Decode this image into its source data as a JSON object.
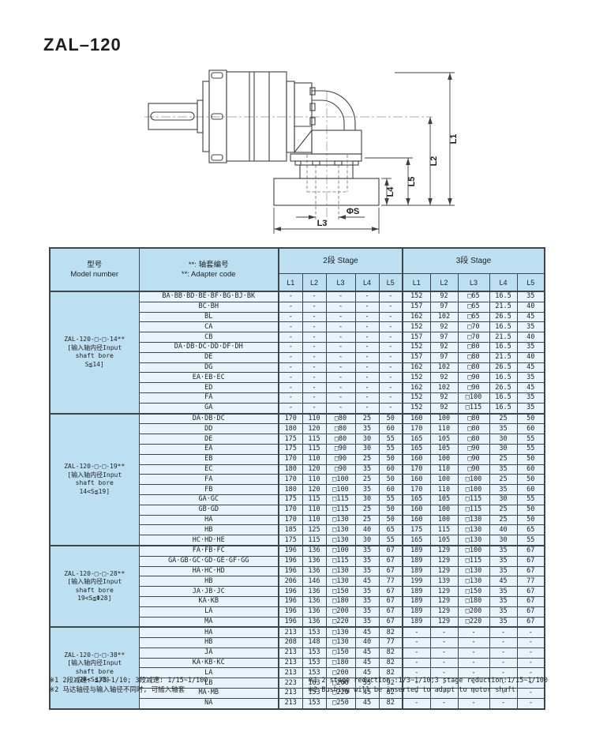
{
  "page": {
    "title": "ZAL–120"
  },
  "colors": {
    "header_bg": "#bce0f2",
    "cell_bg": "#e9f4fa",
    "border": "#3d464d",
    "line": "#404040"
  },
  "drawing": {
    "description": "Right-angle planetary gearbox, side view with dimensions",
    "dims": {
      "l1": "L1",
      "l2": "L2",
      "l3": "L3",
      "l4": "L4",
      "l5": "L5",
      "phi_s": "ΦS"
    }
  },
  "table": {
    "headers": {
      "model_zh": "型号",
      "model_en": "Model number",
      "adapter_zh": "**: 轴套编号",
      "adapter_en": "**: Adapter code",
      "stage2": "2段 Stage",
      "stage3": "3段 Stage"
    },
    "sub_headers": [
      "L1",
      "L2",
      "L3",
      "L4",
      "L5"
    ],
    "groups": [
      {
        "model_lines": [
          "ZAL-120-□-□-14**",
          "[输入轴内径Input",
          "shaft bore",
          "S≦14]"
        ],
        "rows": [
          {
            "code": "BA·BB·BD·BE·BF·BG·BJ·BK",
            "s2": [
              "-",
              "-",
              "-",
              "-",
              "-"
            ],
            "s3": [
              "152",
              "92",
              "□65",
              "16.5",
              "35"
            ]
          },
          {
            "code": "BC·BH",
            "s2": [
              "-",
              "-",
              "-",
              "-",
              "-"
            ],
            "s3": [
              "157",
              "97",
              "□65",
              "21.5",
              "40"
            ]
          },
          {
            "code": "BL",
            "s2": [
              "-",
              "-",
              "-",
              "-",
              "-"
            ],
            "s3": [
              "162",
              "102",
              "□65",
              "26.5",
              "45"
            ]
          },
          {
            "code": "CA",
            "s2": [
              "-",
              "-",
              "-",
              "-",
              "-"
            ],
            "s3": [
              "152",
              "92",
              "□70",
              "16.5",
              "35"
            ]
          },
          {
            "code": "CB",
            "s2": [
              "-",
              "-",
              "-",
              "-",
              "-"
            ],
            "s3": [
              "157",
              "97",
              "□70",
              "21.5",
              "40"
            ]
          },
          {
            "code": "DA·DB·DC·DD·DF·DH",
            "s2": [
              "-",
              "-",
              "-",
              "-",
              "-"
            ],
            "s3": [
              "152",
              "92",
              "□80",
              "16.5",
              "35"
            ]
          },
          {
            "code": "DE",
            "s2": [
              "-",
              "-",
              "-",
              "-",
              "-"
            ],
            "s3": [
              "157",
              "97",
              "□80",
              "21.5",
              "40"
            ]
          },
          {
            "code": "DG",
            "s2": [
              "-",
              "-",
              "-",
              "-",
              "-"
            ],
            "s3": [
              "162",
              "102",
              "□80",
              "26.5",
              "45"
            ]
          },
          {
            "code": "EA·EB·EC",
            "s2": [
              "-",
              "-",
              "-",
              "-",
              "-"
            ],
            "s3": [
              "152",
              "92",
              "□90",
              "16.5",
              "35"
            ]
          },
          {
            "code": "ED",
            "s2": [
              "-",
              "-",
              "-",
              "-",
              "-"
            ],
            "s3": [
              "162",
              "102",
              "□90",
              "26.5",
              "45"
            ]
          },
          {
            "code": "FA",
            "s2": [
              "-",
              "-",
              "-",
              "-",
              "-"
            ],
            "s3": [
              "152",
              "92",
              "□100",
              "16.5",
              "35"
            ]
          },
          {
            "code": "GA",
            "s2": [
              "-",
              "-",
              "-",
              "-",
              "-"
            ],
            "s3": [
              "152",
              "92",
              "□115",
              "16.5",
              "35"
            ]
          }
        ]
      },
      {
        "model_lines": [
          "ZAL-120-□-□-19**",
          "[输入轴内径Input",
          "shaft bore",
          "14<S≦19]"
        ],
        "rows": [
          {
            "code": "DA·DB·DC",
            "s2": [
              "170",
              "110",
              "□80",
              "25",
              "50"
            ],
            "s3": [
              "160",
              "100",
              "□80",
              "25",
              "50"
            ]
          },
          {
            "code": "DD",
            "s2": [
              "180",
              "120",
              "□80",
              "35",
              "60"
            ],
            "s3": [
              "170",
              "110",
              "□80",
              "35",
              "60"
            ]
          },
          {
            "code": "DE",
            "s2": [
              "175",
              "115",
              "□80",
              "30",
              "55"
            ],
            "s3": [
              "165",
              "105",
              "□80",
              "30",
              "55"
            ]
          },
          {
            "code": "EA",
            "s2": [
              "175",
              "115",
              "□90",
              "30",
              "55"
            ],
            "s3": [
              "165",
              "105",
              "□90",
              "30",
              "55"
            ]
          },
          {
            "code": "EB",
            "s2": [
              "170",
              "110",
              "□90",
              "25",
              "50"
            ],
            "s3": [
              "160",
              "100",
              "□90",
              "25",
              "50"
            ]
          },
          {
            "code": "EC",
            "s2": [
              "180",
              "120",
              "□90",
              "35",
              "60"
            ],
            "s3": [
              "170",
              "110",
              "□90",
              "35",
              "60"
            ]
          },
          {
            "code": "FA",
            "s2": [
              "170",
              "110",
              "□100",
              "25",
              "50"
            ],
            "s3": [
              "160",
              "100",
              "□100",
              "25",
              "50"
            ]
          },
          {
            "code": "FB",
            "s2": [
              "180",
              "120",
              "□100",
              "35",
              "60"
            ],
            "s3": [
              "170",
              "110",
              "□100",
              "35",
              "60"
            ]
          },
          {
            "code": "GA·GC",
            "s2": [
              "175",
              "115",
              "□115",
              "30",
              "55"
            ],
            "s3": [
              "165",
              "105",
              "□115",
              "30",
              "55"
            ]
          },
          {
            "code": "GB·GD",
            "s2": [
              "170",
              "110",
              "□115",
              "25",
              "50"
            ],
            "s3": [
              "160",
              "100",
              "□115",
              "25",
              "50"
            ]
          },
          {
            "code": "HA",
            "s2": [
              "170",
              "110",
              "□130",
              "25",
              "50"
            ],
            "s3": [
              "160",
              "100",
              "□130",
              "25",
              "50"
            ]
          },
          {
            "code": "HB",
            "s2": [
              "185",
              "125",
              "□130",
              "40",
              "65"
            ],
            "s3": [
              "175",
              "115",
              "□130",
              "40",
              "65"
            ]
          },
          {
            "code": "HC·HD·HE",
            "s2": [
              "175",
              "115",
              "□130",
              "30",
              "55"
            ],
            "s3": [
              "165",
              "105",
              "□130",
              "30",
              "55"
            ]
          }
        ]
      },
      {
        "model_lines": [
          "ZAL-120-□-□-28**",
          "[输入轴内径Input",
          "shaft bore",
          "19<S≦Φ28]"
        ],
        "rows": [
          {
            "code": "FA·FB·FC",
            "s2": [
              "196",
              "136",
              "□100",
              "35",
              "67"
            ],
            "s3": [
              "189",
              "129",
              "□100",
              "35",
              "67"
            ]
          },
          {
            "code": "GA·GB·GC·GD·GE·GF·GG",
            "s2": [
              "196",
              "136",
              "□115",
              "35",
              "67"
            ],
            "s3": [
              "189",
              "129",
              "□115",
              "35",
              "67"
            ]
          },
          {
            "code": "HA·HC·HD",
            "s2": [
              "196",
              "136",
              "□130",
              "35",
              "67"
            ],
            "s3": [
              "189",
              "129",
              "□130",
              "35",
              "67"
            ]
          },
          {
            "code": "HB",
            "s2": [
              "206",
              "146",
              "□130",
              "45",
              "77"
            ],
            "s3": [
              "199",
              "139",
              "□130",
              "45",
              "77"
            ]
          },
          {
            "code": "JA·JB·JC",
            "s2": [
              "196",
              "136",
              "□150",
              "35",
              "67"
            ],
            "s3": [
              "189",
              "129",
              "□150",
              "35",
              "67"
            ]
          },
          {
            "code": "KA·KB",
            "s2": [
              "196",
              "136",
              "□180",
              "35",
              "67"
            ],
            "s3": [
              "189",
              "129",
              "□180",
              "35",
              "67"
            ]
          },
          {
            "code": "LA",
            "s2": [
              "196",
              "136",
              "□200",
              "35",
              "67"
            ],
            "s3": [
              "189",
              "129",
              "□200",
              "35",
              "67"
            ]
          },
          {
            "code": "MA",
            "s2": [
              "196",
              "136",
              "□220",
              "35",
              "67"
            ],
            "s3": [
              "189",
              "129",
              "□220",
              "35",
              "67"
            ]
          }
        ]
      },
      {
        "model_lines": [
          "ZAL-120-□-□-38**",
          "[输入轴内径Input",
          "shaft bore",
          "28<S≦38]"
        ],
        "rows": [
          {
            "code": "HA",
            "s2": [
              "213",
              "153",
              "□130",
              "45",
              "82"
            ],
            "s3": [
              "-",
              "-",
              "-",
              "-",
              "-"
            ]
          },
          {
            "code": "HB",
            "s2": [
              "208",
              "148",
              "□130",
              "40",
              "77"
            ],
            "s3": [
              "-",
              "-",
              "-",
              "-",
              "-"
            ]
          },
          {
            "code": "JA",
            "s2": [
              "213",
              "153",
              "□150",
              "45",
              "82"
            ],
            "s3": [
              "-",
              "-",
              "-",
              "-",
              "-"
            ]
          },
          {
            "code": "KA·KB·KC",
            "s2": [
              "213",
              "153",
              "□180",
              "45",
              "82"
            ],
            "s3": [
              "-",
              "-",
              "-",
              "-",
              "-"
            ]
          },
          {
            "code": "LA",
            "s2": [
              "213",
              "153",
              "□200",
              "45",
              "82"
            ],
            "s3": [
              "-",
              "-",
              "-",
              "-",
              "-"
            ]
          },
          {
            "code": "LB",
            "s2": [
              "223",
              "163",
              "□200",
              "55",
              "92"
            ],
            "s3": [
              "-",
              "-",
              "-",
              "-",
              "-"
            ]
          },
          {
            "code": "MA·MB",
            "s2": [
              "213",
              "153",
              "□220",
              "45",
              "82"
            ],
            "s3": [
              "-",
              "-",
              "-",
              "-",
              "-"
            ]
          },
          {
            "code": "NA",
            "s2": [
              "213",
              "153",
              "□250",
              "45",
              "82"
            ],
            "s3": [
              "-",
              "-",
              "-",
              "-",
              "-"
            ]
          }
        ]
      }
    ],
    "notes_zh": [
      "※1 2段减速: 1/3~1/10; 3段减速: 1/15~1/100",
      "※2 马达轴径与输入轴径不同时, 可插入轴套"
    ],
    "notes_en": [
      "※1 2 stage reduction :1/3~1/10;3 stage reduction:1/15~1/100",
      "※2 Bushing will be inserted to adapt to motor shaft."
    ]
  }
}
